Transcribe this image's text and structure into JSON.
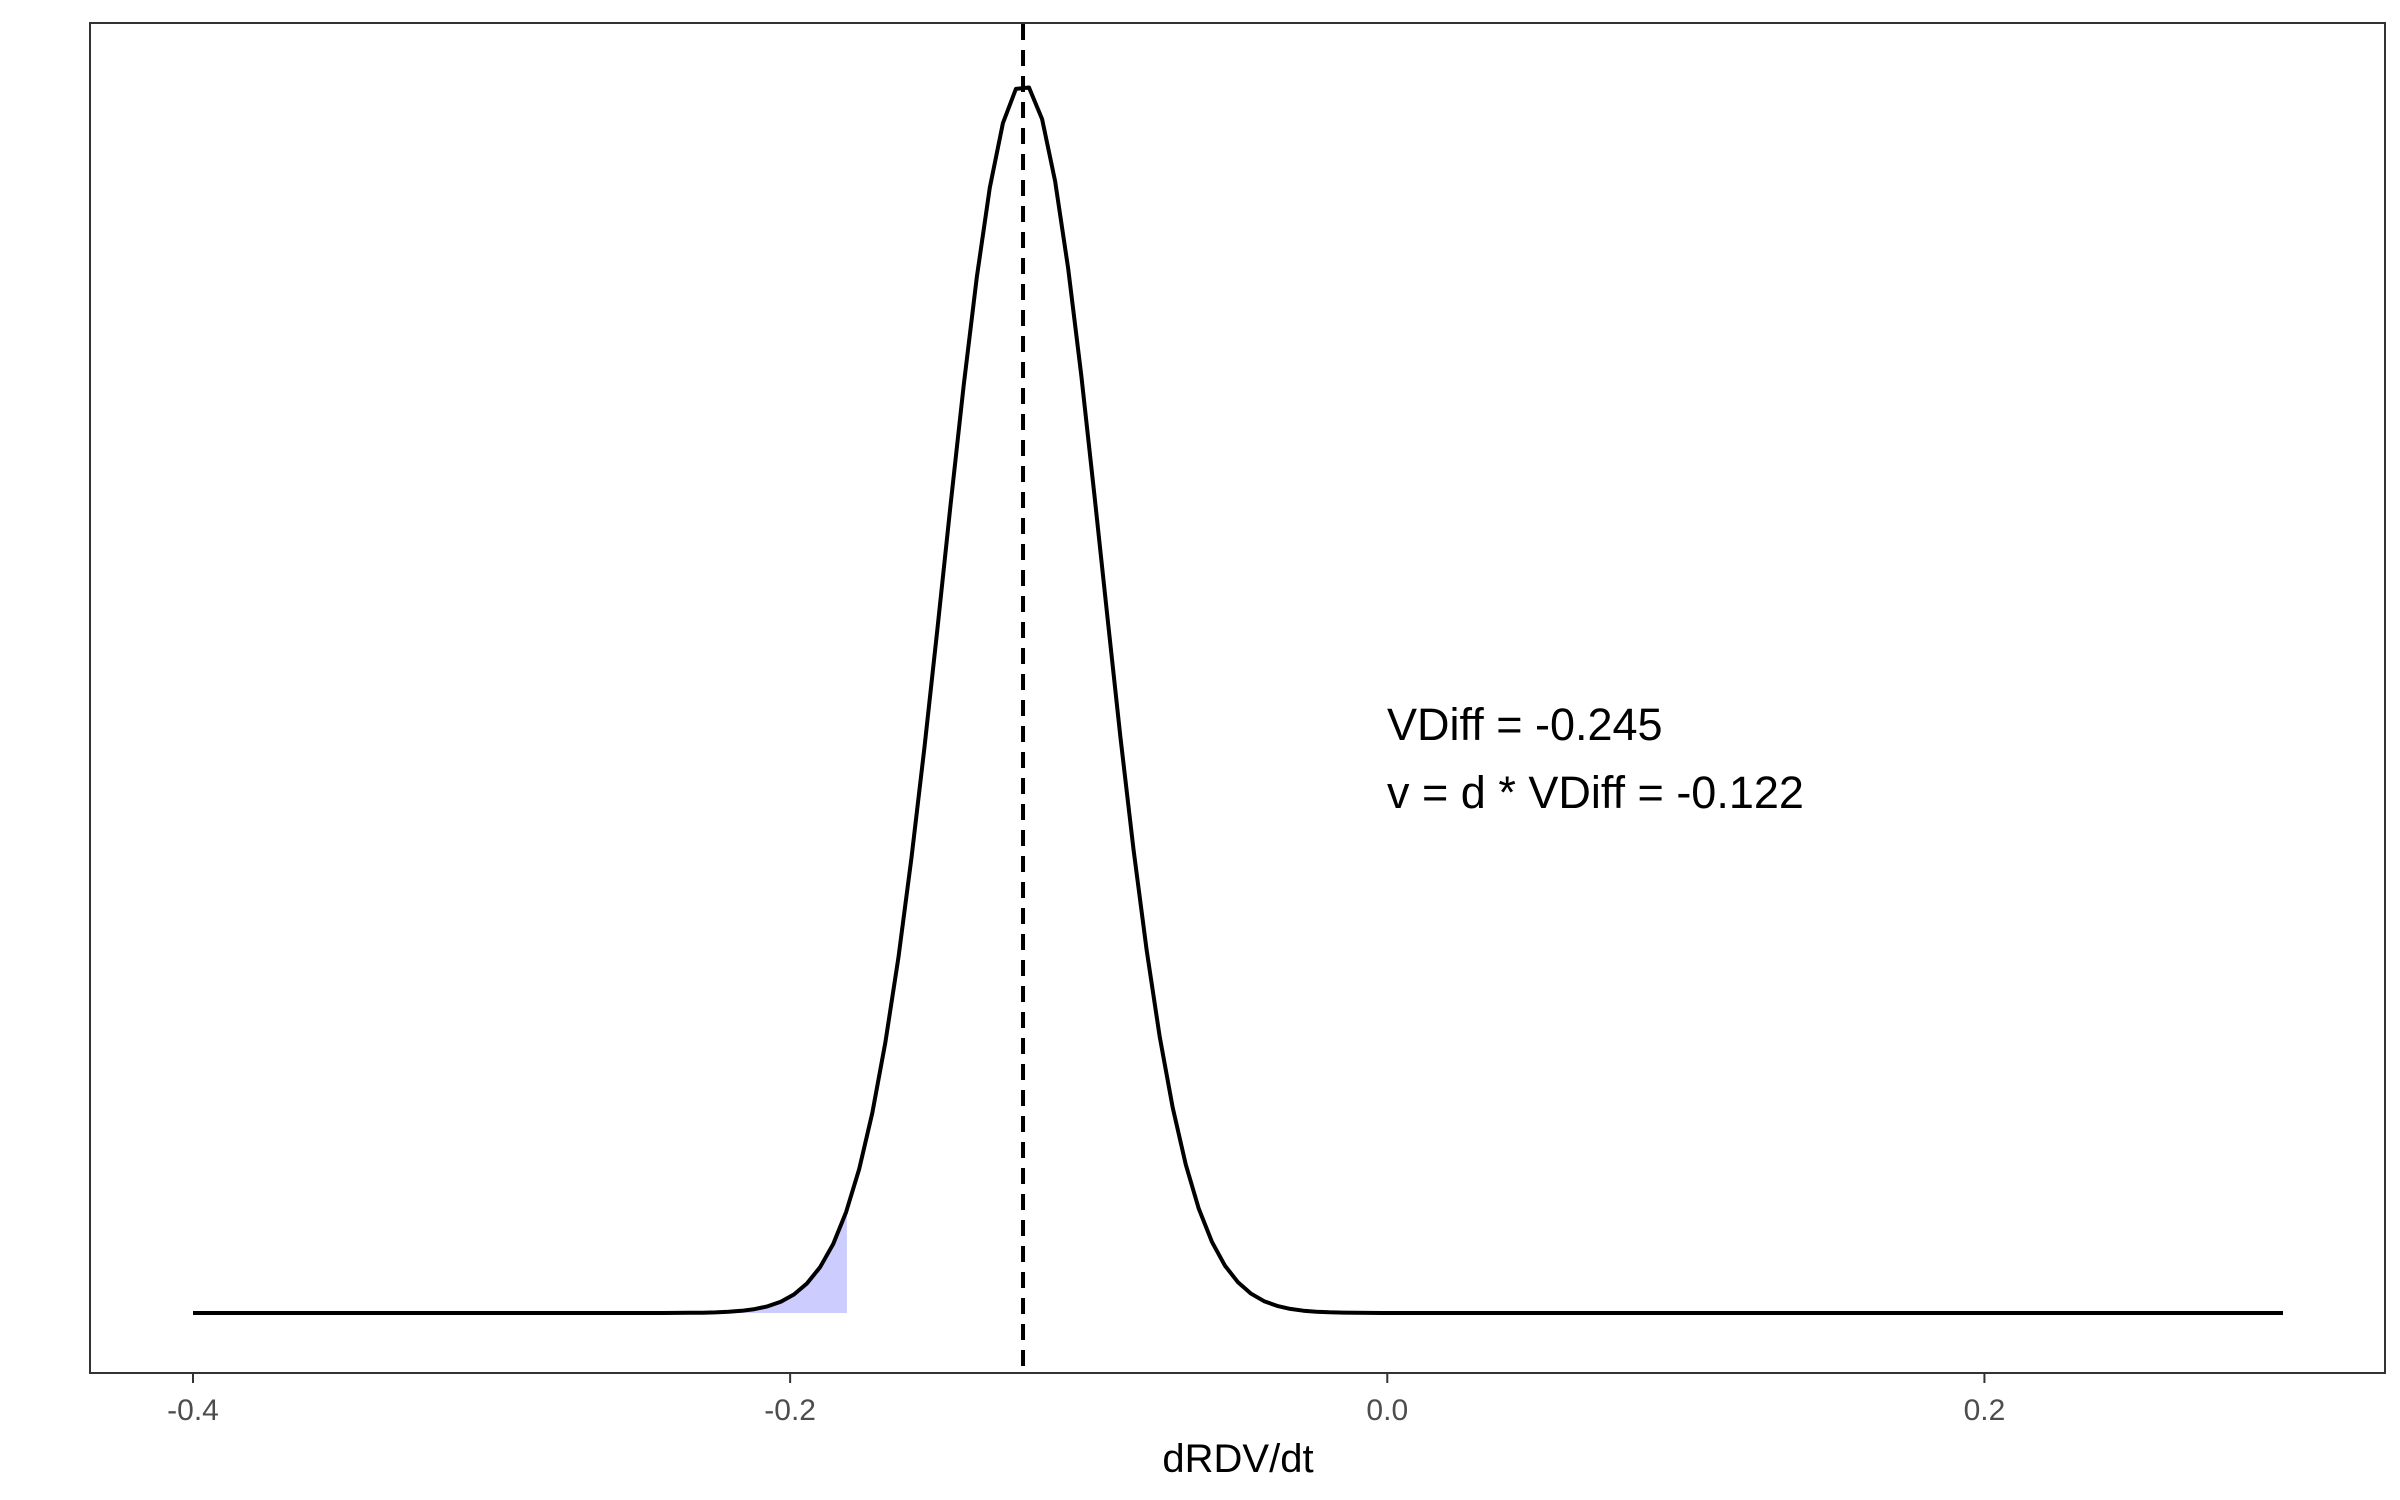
{
  "chart_data": {
    "type": "area",
    "title": "",
    "xlabel": "dRDV/dt",
    "ylabel": "",
    "xlim": [
      -0.4,
      0.3
    ],
    "y_axis_shown": false,
    "grid": false,
    "legend": "none",
    "x_ticks": [
      "-0.4",
      "-0.2",
      "0.0",
      "0.2"
    ],
    "x_tick_values": [
      -0.4,
      -0.2,
      0.0,
      0.2
    ],
    "density_curve": {
      "mean": -0.122,
      "sd": 0.0265,
      "color": "#000000"
    },
    "shaded_region": {
      "from": -0.4,
      "to": -0.181,
      "color": "#ccccff"
    },
    "vline": {
      "x": -0.122,
      "style": "dashed",
      "color": "#000000"
    },
    "annotations": [
      "VDiff = -0.245",
      "v = d * VDiff = -0.122"
    ]
  }
}
